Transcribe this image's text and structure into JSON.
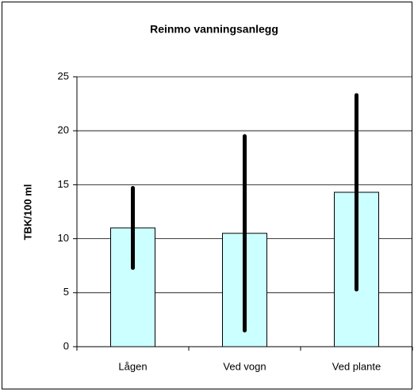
{
  "chart_data": {
    "type": "bar",
    "title": "Reinmo vanningsanlegg",
    "y_label": "TBK/100 ml",
    "categories": [
      "Lågen",
      "Ved vogn",
      "Ved plante"
    ],
    "values": [
      11,
      10.5,
      14.3
    ],
    "errors": [
      3.7,
      9,
      9
    ],
    "color": "#ccffff",
    "error_color": "#000000",
    "ylim": [
      0,
      25
    ],
    "yticks": [
      0,
      5,
      10,
      15,
      20,
      25
    ],
    "grid": true
  }
}
